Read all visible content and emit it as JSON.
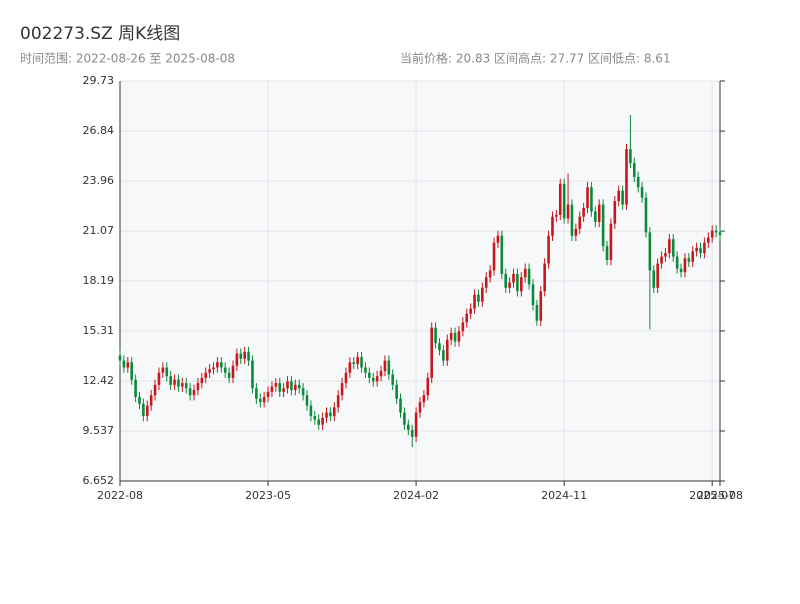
{
  "chart_data": {
    "type": "candlestick",
    "title": "002273.SZ 周K线图",
    "subtitle": "时间范围: 2022-08-26 至 2025-08-08",
    "stats": [
      "当前价格: 20.83",
      "区间高点: 27.77",
      "区间低点: 8.61"
    ],
    "up_color": "#c8161d",
    "down_color": "#0a8a3a",
    "grid": true,
    "ylim": [
      6.652,
      29.73
    ],
    "yticks": [
      6.652,
      9.537,
      12.42,
      15.31,
      18.19,
      21.07,
      23.96,
      26.84,
      29.73
    ],
    "categories": [
      "2022-08",
      null,
      null,
      null,
      null,
      null,
      null,
      null,
      null,
      null,
      null,
      null,
      null,
      null,
      null,
      null,
      null,
      null,
      null,
      null,
      null,
      null,
      null,
      null,
      null,
      null,
      null,
      null,
      null,
      null,
      null,
      null,
      null,
      null,
      null,
      null,
      null,
      null,
      "2023-05",
      null,
      null,
      null,
      null,
      null,
      null,
      null,
      null,
      null,
      null,
      null,
      null,
      null,
      null,
      null,
      null,
      null,
      null,
      null,
      null,
      null,
      null,
      null,
      null,
      null,
      null,
      null,
      null,
      null,
      null,
      null,
      null,
      null,
      null,
      null,
      null,
      null,
      "2024-02",
      null,
      null,
      null,
      null,
      null,
      null,
      null,
      null,
      null,
      null,
      null,
      null,
      null,
      null,
      null,
      null,
      null,
      null,
      null,
      null,
      null,
      null,
      null,
      null,
      null,
      null,
      null,
      null,
      null,
      null,
      null,
      null,
      null,
      null,
      null,
      null,
      null,
      "2024-11",
      null,
      null,
      null,
      null,
      null,
      null,
      null,
      null,
      null,
      null,
      null,
      null,
      null,
      null,
      null,
      null,
      null,
      null,
      null,
      null,
      null,
      null,
      null,
      null,
      null,
      null,
      null,
      null,
      null,
      null,
      null,
      null,
      null,
      null,
      null,
      null,
      null,
      "2025-07",
      null,
      "2025-08"
    ],
    "open": [
      13.9,
      13.6,
      13.2,
      13.5,
      12.5,
      11.5,
      11.1,
      10.4,
      11.0,
      11.6,
      12.2,
      12.9,
      13.2,
      12.7,
      12.2,
      12.5,
      12.1,
      12.3,
      12.0,
      11.6,
      11.9,
      12.3,
      12.6,
      12.9,
      13.1,
      13.2,
      13.5,
      13.2,
      12.9,
      12.6,
      13.3,
      14.0,
      13.7,
      14.1,
      13.6,
      12.0,
      11.4,
      11.2,
      11.5,
      11.8,
      12.1,
      12.3,
      11.8,
      12.0,
      12.4,
      11.9,
      12.2,
      12.0,
      11.6,
      11.0,
      10.4,
      10.2,
      9.9,
      10.3,
      10.6,
      10.4,
      10.9,
      11.6,
      12.3,
      12.9,
      13.5,
      13.4,
      13.8,
      13.2,
      12.9,
      12.6,
      12.4,
      12.7,
      13.0,
      13.6,
      12.8,
      12.2,
      11.4,
      10.6,
      9.9,
      9.6,
      9.2,
      10.6,
      11.2,
      11.6,
      12.6,
      15.5,
      14.6,
      14.2,
      13.6,
      14.8,
      15.2,
      14.7,
      15.3,
      15.8,
      16.3,
      16.6,
      17.4,
      17.0,
      17.8,
      18.4,
      18.8,
      20.4,
      20.8,
      18.6,
      17.8,
      18.1,
      18.6,
      17.6,
      18.4,
      18.9,
      18.0,
      16.8,
      15.9,
      17.6,
      19.2,
      20.8,
      21.9,
      22.0,
      23.8,
      21.8,
      22.6,
      20.8,
      21.2,
      21.9,
      22.4,
      23.6,
      22.2,
      21.6,
      22.6,
      20.2,
      19.4,
      21.5,
      22.8,
      23.4,
      22.6,
      25.8,
      25.0,
      24.2,
      23.6,
      23.0,
      21.0,
      18.8,
      17.8,
      19.2,
      19.6,
      19.8,
      20.6,
      19.6,
      18.9,
      18.7,
      19.5,
      19.3,
      19.9,
      20.1,
      19.8,
      20.4,
      20.7,
      21.1,
      21.0
    ],
    "close": [
      13.6,
      13.2,
      13.5,
      12.5,
      11.5,
      11.1,
      10.4,
      11.0,
      11.6,
      12.2,
      12.9,
      13.2,
      12.7,
      12.2,
      12.5,
      12.1,
      12.3,
      12.0,
      11.6,
      11.9,
      12.3,
      12.6,
      12.9,
      13.1,
      13.2,
      13.5,
      13.2,
      12.9,
      12.6,
      13.3,
      14.0,
      13.7,
      14.1,
      13.6,
      12.0,
      11.4,
      11.2,
      11.5,
      11.8,
      12.1,
      12.3,
      11.8,
      12.0,
      12.4,
      11.9,
      12.2,
      12.0,
      11.6,
      11.0,
      10.4,
      10.2,
      9.9,
      10.3,
      10.6,
      10.4,
      10.9,
      11.6,
      12.3,
      12.9,
      13.5,
      13.4,
      13.8,
      13.2,
      12.9,
      12.6,
      12.4,
      12.7,
      13.0,
      13.6,
      12.8,
      12.2,
      11.4,
      10.6,
      9.9,
      9.6,
      9.2,
      10.6,
      11.2,
      11.6,
      12.6,
      15.5,
      14.6,
      14.2,
      13.6,
      14.8,
      15.2,
      14.7,
      15.3,
      15.8,
      16.3,
      16.6,
      17.4,
      17.0,
      17.8,
      18.4,
      18.8,
      20.4,
      20.8,
      18.6,
      17.8,
      18.1,
      18.6,
      17.6,
      18.4,
      18.9,
      18.0,
      16.8,
      15.9,
      17.6,
      19.2,
      20.8,
      21.9,
      22.0,
      23.8,
      21.8,
      22.6,
      20.8,
      21.2,
      21.9,
      22.4,
      23.6,
      22.2,
      21.6,
      22.6,
      20.2,
      19.4,
      21.5,
      22.8,
      23.4,
      22.6,
      25.8,
      25.0,
      24.2,
      23.6,
      23.0,
      21.0,
      18.8,
      17.8,
      19.2,
      19.6,
      19.8,
      20.6,
      19.6,
      18.9,
      18.7,
      19.5,
      19.3,
      19.9,
      20.1,
      19.8,
      20.4,
      20.7,
      21.1,
      21.0,
      20.83
    ],
    "high": [
      14.2,
      13.9,
      13.8,
      13.8,
      12.8,
      11.8,
      11.4,
      11.3,
      11.9,
      12.5,
      13.2,
      13.5,
      13.5,
      13.0,
      12.8,
      12.8,
      12.6,
      12.6,
      12.3,
      12.2,
      12.6,
      12.9,
      13.2,
      13.4,
      13.5,
      13.8,
      13.8,
      13.5,
      13.2,
      13.6,
      14.3,
      14.3,
      14.4,
      14.4,
      13.9,
      12.3,
      11.7,
      11.8,
      12.1,
      12.4,
      12.6,
      12.6,
      12.3,
      12.7,
      12.7,
      12.5,
      12.5,
      12.3,
      11.9,
      11.3,
      10.7,
      10.5,
      10.6,
      10.9,
      10.9,
      11.2,
      11.9,
      12.6,
      13.2,
      13.8,
      13.8,
      14.1,
      14.1,
      13.5,
      13.2,
      12.9,
      13.0,
      13.3,
      13.9,
      13.9,
      13.1,
      12.5,
      11.7,
      10.9,
      10.2,
      9.9,
      10.9,
      11.5,
      11.9,
      12.9,
      15.8,
      15.8,
      14.9,
      14.5,
      15.1,
      15.5,
      15.5,
      15.6,
      16.1,
      16.6,
      16.9,
      17.7,
      17.7,
      18.1,
      18.7,
      19.1,
      20.7,
      21.1,
      21.1,
      18.9,
      18.4,
      18.9,
      18.9,
      18.7,
      19.2,
      19.2,
      18.3,
      17.1,
      17.9,
      19.5,
      21.1,
      22.2,
      22.3,
      24.1,
      24.1,
      24.4,
      22.9,
      21.5,
      22.2,
      22.7,
      23.9,
      23.9,
      22.5,
      22.9,
      22.9,
      20.5,
      21.8,
      23.1,
      23.7,
      23.7,
      26.1,
      27.77,
      25.3,
      24.5,
      23.9,
      23.3,
      21.3,
      19.1,
      19.5,
      19.9,
      20.1,
      20.9,
      20.9,
      19.9,
      19.2,
      19.8,
      19.8,
      20.2,
      20.4,
      20.4,
      20.7,
      21.0,
      21.4,
      21.4,
      21.3
    ],
    "low": [
      13.3,
      12.9,
      12.9,
      12.2,
      11.2,
      10.8,
      10.1,
      10.1,
      10.7,
      11.3,
      11.9,
      12.6,
      12.4,
      11.9,
      11.9,
      11.8,
      11.8,
      11.7,
      11.3,
      11.3,
      11.6,
      12.0,
      12.3,
      12.6,
      12.8,
      12.9,
      12.9,
      12.6,
      12.3,
      12.3,
      13.0,
      13.4,
      13.4,
      13.3,
      11.7,
      11.1,
      10.9,
      10.9,
      11.2,
      11.5,
      11.8,
      11.5,
      11.5,
      11.7,
      11.6,
      11.6,
      11.7,
      11.3,
      10.7,
      10.1,
      9.9,
      9.6,
      9.6,
      10.0,
      10.1,
      10.1,
      10.6,
      11.3,
      12.0,
      12.6,
      13.1,
      13.1,
      12.9,
      12.6,
      12.3,
      12.1,
      12.1,
      12.4,
      12.7,
      12.5,
      11.9,
      11.1,
      10.3,
      9.6,
      9.3,
      8.61,
      8.9,
      10.3,
      10.9,
      11.3,
      12.3,
      14.3,
      13.9,
      13.3,
      13.3,
      14.5,
      14.4,
      14.4,
      15.0,
      15.5,
      16.0,
      16.3,
      16.7,
      16.7,
      17.5,
      18.1,
      18.5,
      20.1,
      18.3,
      17.5,
      17.5,
      17.8,
      17.3,
      17.3,
      18.1,
      17.7,
      16.5,
      15.6,
      15.6,
      17.3,
      18.9,
      20.5,
      21.6,
      21.7,
      21.5,
      21.5,
      20.5,
      20.5,
      20.9,
      21.6,
      22.1,
      21.9,
      21.3,
      21.3,
      19.9,
      19.1,
      19.1,
      21.2,
      22.5,
      22.3,
      22.3,
      24.7,
      23.9,
      23.3,
      22.7,
      20.7,
      15.4,
      17.5,
      17.5,
      18.9,
      19.3,
      19.5,
      19.3,
      18.6,
      18.4,
      18.4,
      19.0,
      19.0,
      19.6,
      19.5,
      19.5,
      20.1,
      20.4,
      20.7,
      20.53
    ]
  }
}
